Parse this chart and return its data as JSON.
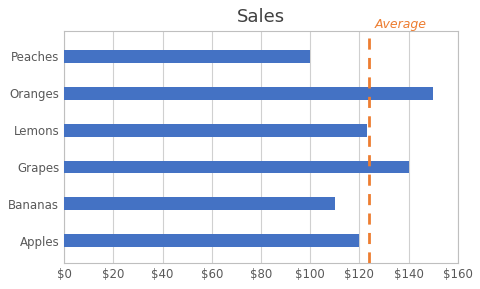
{
  "title": "Sales",
  "categories": [
    "Apples",
    "Bananas",
    "Grapes",
    "Lemons",
    "Oranges",
    "Peaches"
  ],
  "values": [
    120,
    110,
    140,
    123,
    150,
    100
  ],
  "bar_color": "#4472C4",
  "average_value": 123.83,
  "average_label": "Average",
  "average_color": "#ED7D31",
  "xlim": [
    0,
    160
  ],
  "xtick_step": 20,
  "background_color": "#FFFFFF",
  "grid_color": "#D0D0D0",
  "title_fontsize": 13,
  "axis_label_fontsize": 8.5,
  "bar_height": 0.35,
  "figsize": [
    4.81,
    2.89
  ],
  "dpi": 100
}
